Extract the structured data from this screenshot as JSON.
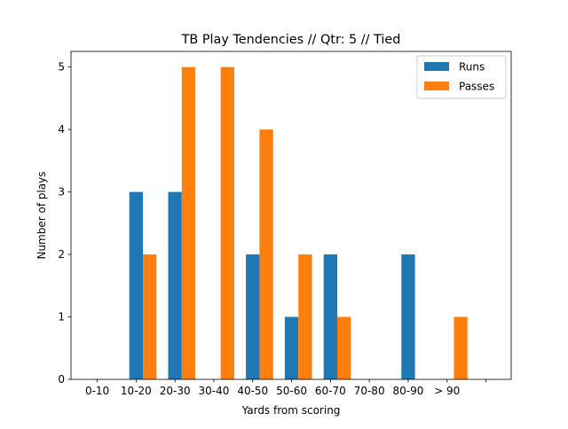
{
  "chart_data": {
    "type": "bar",
    "title": "TB Play Tendencies // Qtr: 5 // Tied",
    "xlabel": "Yards from scoring",
    "ylabel": "Number of plays",
    "categories": [
      "0-10",
      "10-20",
      "20-30",
      "30-40",
      "40-50",
      "50-60",
      "60-70",
      "70-80",
      "80-90",
      "> 90",
      ""
    ],
    "series": [
      {
        "name": "Runs",
        "color": "#1f77b4",
        "values": [
          0,
          3,
          3,
          0,
          2,
          1,
          2,
          0,
          2,
          0,
          0
        ]
      },
      {
        "name": "Passes",
        "color": "#ff7f0e",
        "values": [
          0,
          2,
          5,
          5,
          4,
          2,
          1,
          0,
          0,
          1,
          0
        ]
      }
    ],
    "ylim": [
      0,
      5.25
    ],
    "yticks": [
      "0",
      "1",
      "2",
      "3",
      "4",
      "5"
    ],
    "grid": false,
    "legend_position": "top-right"
  }
}
